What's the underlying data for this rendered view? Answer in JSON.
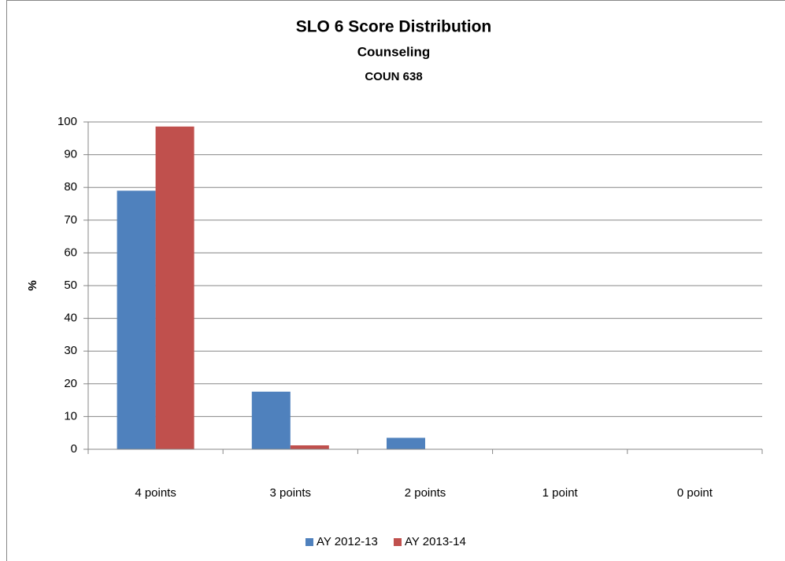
{
  "chart_data": {
    "type": "bar",
    "title": "SLO 6 Score Distribution",
    "subtitle": "Counseling",
    "subtitle2": "COUN 638",
    "y_label": "%",
    "categories": [
      "4 points",
      "3 points",
      "2 points",
      "1 point",
      "0 point"
    ],
    "series": [
      {
        "name": "AY 2012-13",
        "color": "#4f81bd",
        "values": [
          79,
          17.6,
          3.5,
          0,
          0
        ]
      },
      {
        "name": "AY 2013-14",
        "color": "#c0504d",
        "values": [
          98.6,
          1.2,
          0,
          0,
          0
        ]
      }
    ],
    "ylim": [
      0,
      100
    ],
    "yticks": [
      0,
      10,
      20,
      30,
      40,
      50,
      60,
      70,
      80,
      90,
      100
    ],
    "grid": true,
    "legend": "bottom"
  }
}
